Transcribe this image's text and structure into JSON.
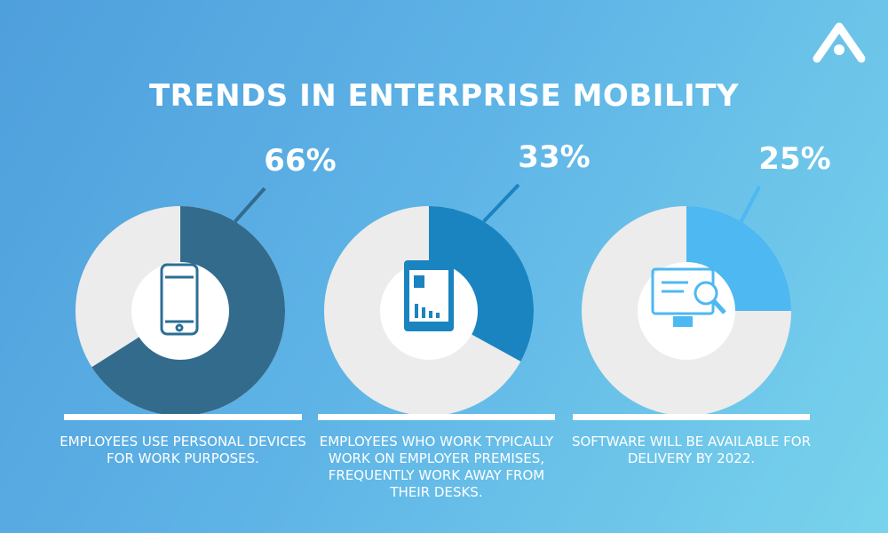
{
  "title": "TRENDS IN ENTERPRISE MOBILITY",
  "chart_data": [
    {
      "type": "donut",
      "values": [
        66
      ],
      "value_labels": [
        "66%"
      ],
      "color": "#336b8c",
      "caption": "EMPLOYEES USE PERSONAL DEVICES FOR WORK PURPOSES."
    },
    {
      "type": "donut",
      "values": [
        33
      ],
      "value_labels": [
        "33%"
      ],
      "color": "#1a84c0",
      "caption": "EMPLOYEES WHO WORK TYPICALLY WORK ON EMPLOYER PREMISES, FREQUENTLY WORK AWAY FROM THEIR DESKS."
    },
    {
      "type": "donut",
      "values": [
        25
      ],
      "value_labels": [
        "25%"
      ],
      "color": "#4db8f2",
      "caption": "SOFTWARE WILL BE AVAILABLE FOR DELIVERY BY 2022."
    }
  ]
}
